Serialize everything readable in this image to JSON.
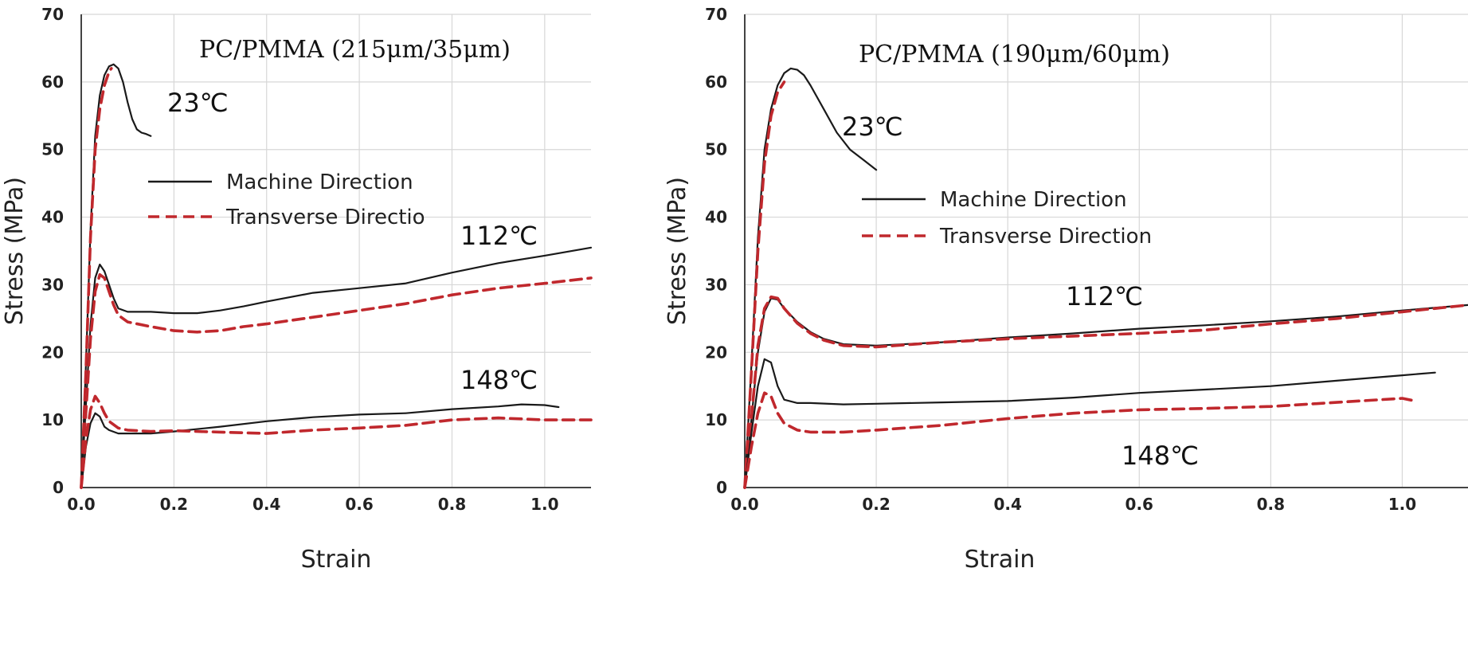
{
  "chart_data": [
    {
      "type": "line",
      "title": "PC/PMMA (215μm/35μm)",
      "xlabel": "Strain",
      "ylabel": "Stress (MPa)",
      "xlim": [
        0,
        1.1
      ],
      "ylim": [
        0,
        70
      ],
      "x_ticks": [
        "0.0",
        "0.2",
        "0.4",
        "0.6",
        "0.8",
        "1.0"
      ],
      "y_ticks": [
        "0",
        "10",
        "20",
        "30",
        "40",
        "50",
        "60",
        "70"
      ],
      "grid": true,
      "legend": {
        "placement": "center-left",
        "entries": [
          {
            "label": "Machine Direction",
            "style": "solid",
            "color": "#1a1a1a"
          },
          {
            "label": "Transverse Directio",
            "style": "dashed",
            "color": "#c0282d"
          }
        ]
      },
      "annotations": [
        "23℃",
        "112℃",
        "148℃"
      ],
      "series": [
        {
          "name": "Machine Direction",
          "temperature": "23℃",
          "color": "#1a1a1a",
          "dash": false,
          "x": [
            0,
            0.01,
            0.02,
            0.03,
            0.04,
            0.05,
            0.06,
            0.07,
            0.08,
            0.09,
            0.1,
            0.11,
            0.12,
            0.13,
            0.14,
            0.15
          ],
          "y": [
            0,
            18,
            38,
            52,
            58,
            61,
            62.3,
            62.6,
            62,
            60,
            57,
            54.5,
            53,
            52.5,
            52.3,
            52
          ]
        },
        {
          "name": "Transverse Direction",
          "temperature": "23℃",
          "color": "#c0282d",
          "dash": true,
          "x": [
            0,
            0.01,
            0.02,
            0.03,
            0.04,
            0.05,
            0.06,
            0.065
          ],
          "y": [
            0,
            17,
            37,
            50,
            56,
            59.5,
            61.5,
            62
          ]
        },
        {
          "name": "Machine Direction",
          "temperature": "112℃",
          "color": "#1a1a1a",
          "dash": false,
          "x": [
            0,
            0.01,
            0.02,
            0.03,
            0.04,
            0.05,
            0.06,
            0.07,
            0.08,
            0.1,
            0.15,
            0.2,
            0.25,
            0.3,
            0.35,
            0.4,
            0.5,
            0.6,
            0.7,
            0.8,
            0.9,
            1.0,
            1.1
          ],
          "y": [
            0,
            12,
            24,
            31,
            33,
            32,
            30,
            28,
            26.5,
            26,
            26,
            25.8,
            25.8,
            26.2,
            26.8,
            27.5,
            28.8,
            29.5,
            30.2,
            31.8,
            33.2,
            34.3,
            35.5
          ]
        },
        {
          "name": "Transverse Direction",
          "temperature": "112℃",
          "color": "#c0282d",
          "dash": true,
          "x": [
            0,
            0.01,
            0.02,
            0.03,
            0.04,
            0.05,
            0.06,
            0.07,
            0.08,
            0.1,
            0.15,
            0.2,
            0.25,
            0.3,
            0.35,
            0.4,
            0.5,
            0.6,
            0.7,
            0.8,
            0.9,
            1.0,
            1.1
          ],
          "y": [
            0,
            11,
            22,
            29,
            31.5,
            31,
            29,
            27,
            25.5,
            24.5,
            23.8,
            23.2,
            23,
            23.2,
            23.8,
            24.2,
            25.2,
            26.2,
            27.2,
            28.5,
            29.5,
            30.2,
            31
          ]
        },
        {
          "name": "Machine Direction",
          "temperature": "148℃",
          "color": "#1a1a1a",
          "dash": false,
          "x": [
            0,
            0.01,
            0.02,
            0.03,
            0.04,
            0.05,
            0.06,
            0.08,
            0.1,
            0.15,
            0.2,
            0.3,
            0.4,
            0.5,
            0.6,
            0.7,
            0.8,
            0.9,
            0.95,
            1.0,
            1.03
          ],
          "y": [
            0,
            6,
            9.5,
            11,
            10.5,
            9,
            8.5,
            8,
            8,
            8,
            8.3,
            9,
            9.8,
            10.4,
            10.8,
            11,
            11.6,
            12,
            12.3,
            12.2,
            11.9
          ]
        },
        {
          "name": "Transverse Direction",
          "temperature": "148℃",
          "color": "#c0282d",
          "dash": true,
          "x": [
            0,
            0.01,
            0.02,
            0.03,
            0.04,
            0.05,
            0.06,
            0.08,
            0.1,
            0.15,
            0.2,
            0.3,
            0.4,
            0.5,
            0.6,
            0.7,
            0.8,
            0.9,
            1.0,
            1.1
          ],
          "y": [
            0,
            7,
            11.5,
            13.5,
            12.5,
            11,
            9.8,
            8.8,
            8.5,
            8.3,
            8.4,
            8.2,
            8,
            8.5,
            8.8,
            9.2,
            10,
            10.3,
            10,
            10
          ]
        }
      ]
    },
    {
      "type": "line",
      "title": "PC/PMMA (190μm/60μm)",
      "xlabel": "Strain",
      "ylabel": "Stress (MPa)",
      "xlim": [
        0,
        1.1
      ],
      "ylim": [
        0,
        70
      ],
      "x_ticks": [
        "0.0",
        "0.2",
        "0.4",
        "0.6",
        "0.8",
        "1.0"
      ],
      "y_ticks": [
        "0",
        "10",
        "20",
        "30",
        "40",
        "50",
        "60",
        "70"
      ],
      "grid": true,
      "legend": {
        "placement": "center-right",
        "entries": [
          {
            "label": "Machine Direction",
            "style": "solid",
            "color": "#1a1a1a"
          },
          {
            "label": "Transverse Direction",
            "style": "dashed",
            "color": "#c0282d"
          }
        ]
      },
      "annotations": [
        "23℃",
        "112℃",
        "148℃"
      ],
      "series": [
        {
          "name": "Machine Direction",
          "temperature": "23℃",
          "color": "#1a1a1a",
          "dash": false,
          "x": [
            0,
            0.01,
            0.02,
            0.03,
            0.04,
            0.05,
            0.06,
            0.07,
            0.08,
            0.09,
            0.1,
            0.12,
            0.14,
            0.16,
            0.18,
            0.2
          ],
          "y": [
            0,
            18,
            37,
            50,
            56,
            59.5,
            61.3,
            62,
            61.8,
            61,
            59.5,
            56,
            52.5,
            50,
            48.5,
            47
          ]
        },
        {
          "name": "Transverse Direction",
          "temperature": "23℃",
          "color": "#c0282d",
          "dash": true,
          "x": [
            0,
            0.01,
            0.02,
            0.03,
            0.04,
            0.05,
            0.06
          ],
          "y": [
            0,
            17,
            35,
            48,
            55,
            58.5,
            60
          ]
        },
        {
          "name": "Machine Direction",
          "temperature": "112℃",
          "color": "#1a1a1a",
          "dash": false,
          "x": [
            0,
            0.01,
            0.02,
            0.03,
            0.04,
            0.05,
            0.06,
            0.08,
            0.1,
            0.12,
            0.15,
            0.2,
            0.3,
            0.4,
            0.5,
            0.6,
            0.7,
            0.8,
            0.9,
            1.0,
            1.1
          ],
          "y": [
            0,
            10,
            20,
            26,
            28,
            27.8,
            26.5,
            24.5,
            23,
            22,
            21.2,
            21,
            21.5,
            22.2,
            22.8,
            23.5,
            24,
            24.6,
            25.3,
            26.2,
            27
          ]
        },
        {
          "name": "Transverse Direction",
          "temperature": "112℃",
          "color": "#c0282d",
          "dash": true,
          "x": [
            0,
            0.01,
            0.02,
            0.03,
            0.04,
            0.05,
            0.06,
            0.08,
            0.1,
            0.12,
            0.15,
            0.2,
            0.3,
            0.4,
            0.5,
            0.6,
            0.7,
            0.8,
            0.9,
            1.0,
            1.1
          ],
          "y": [
            0,
            10,
            21,
            26.5,
            28.2,
            28,
            26.5,
            24.3,
            22.8,
            21.8,
            21,
            20.8,
            21.5,
            22,
            22.4,
            22.8,
            23.3,
            24.2,
            25,
            26,
            27
          ]
        },
        {
          "name": "Machine Direction",
          "temperature": "148℃",
          "color": "#1a1a1a",
          "dash": false,
          "x": [
            0,
            0.01,
            0.02,
            0.03,
            0.04,
            0.05,
            0.06,
            0.08,
            0.1,
            0.15,
            0.2,
            0.3,
            0.4,
            0.5,
            0.6,
            0.7,
            0.8,
            0.9,
            1.0,
            1.05
          ],
          "y": [
            0,
            8,
            15,
            19,
            18.5,
            15,
            13,
            12.5,
            12.5,
            12.3,
            12.4,
            12.6,
            12.8,
            13.3,
            14,
            14.5,
            15,
            15.8,
            16.6,
            17
          ]
        },
        {
          "name": "Transverse Direction",
          "temperature": "148℃",
          "color": "#c0282d",
          "dash": true,
          "x": [
            0,
            0.01,
            0.02,
            0.03,
            0.04,
            0.05,
            0.06,
            0.08,
            0.1,
            0.15,
            0.2,
            0.3,
            0.4,
            0.5,
            0.6,
            0.7,
            0.8,
            0.9,
            1.0,
            1.02
          ],
          "y": [
            0,
            6,
            11,
            14,
            13.5,
            11,
            9.5,
            8.5,
            8.2,
            8.2,
            8.5,
            9.2,
            10.2,
            11,
            11.5,
            11.7,
            12,
            12.6,
            13.2,
            12.8
          ]
        }
      ]
    }
  ]
}
